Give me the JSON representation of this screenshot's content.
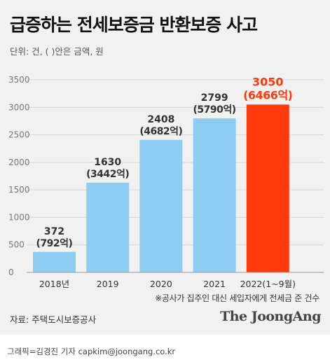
{
  "header": {
    "title": "급증하는 전세보증금 반환보증 사고",
    "unit": "단위: 건, ( )안은 금액, 원"
  },
  "chart_data": {
    "type": "bar",
    "title": "급증하는 전세보증금 반환보증 사고",
    "categories": [
      "2018년",
      "2019",
      "2020",
      "2021",
      "2022(1~9월)"
    ],
    "series": [
      {
        "values": [
          372,
          1630,
          2408,
          2799,
          3050
        ],
        "amount_labels": [
          "(792억)",
          "(3442억)",
          "(4682억)",
          "(5790억)",
          "(6466억)"
        ]
      }
    ],
    "yticks": [
      0,
      500,
      1000,
      1500,
      2000,
      2500,
      3000,
      3500
    ],
    "ylim": [
      0,
      3500
    ],
    "grid": true,
    "colors": {
      "bar": "#8ecdf2",
      "highlight_bar": "#ff3a0d",
      "label": "#333333",
      "highlight_label": "#ff3a0d",
      "grid": "#d6d6d6"
    },
    "highlight_index": 4
  },
  "footer": {
    "note": "※공사가 집주인 대신 세입자에게 전세금 준 건수",
    "source": "자료: 주택도시보증공사",
    "logo": "The JoongAng",
    "credit": "그래픽=김경진 기자 capkim@joongang.co.kr"
  }
}
